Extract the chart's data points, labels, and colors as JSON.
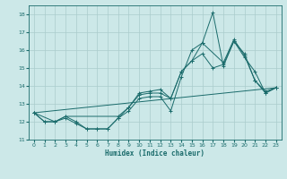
{
  "title": "",
  "xlabel": "Humidex (Indice chaleur)",
  "ylabel": "",
  "xlim": [
    -0.5,
    23.5
  ],
  "ylim": [
    11,
    18.5
  ],
  "yticks": [
    11,
    12,
    13,
    14,
    15,
    16,
    17,
    18
  ],
  "xticks": [
    0,
    1,
    2,
    3,
    4,
    5,
    6,
    7,
    8,
    9,
    10,
    11,
    12,
    13,
    14,
    15,
    16,
    17,
    18,
    19,
    20,
    21,
    22,
    23
  ],
  "bg_color": "#cce8e8",
  "grid_color": "#aacccc",
  "line_color": "#1a6b6b",
  "lines": [
    {
      "x": [
        0,
        1,
        2,
        3,
        4,
        5,
        6,
        7,
        8,
        9,
        10,
        11,
        12,
        13,
        14,
        15,
        16,
        17,
        18,
        19,
        20,
        21,
        22,
        23
      ],
      "y": [
        12.5,
        12.0,
        12.0,
        12.2,
        11.9,
        11.6,
        11.6,
        11.6,
        12.2,
        12.6,
        13.3,
        13.4,
        13.4,
        12.6,
        14.5,
        16.0,
        16.4,
        18.1,
        15.1,
        16.5,
        15.6,
        14.8,
        13.6,
        13.9
      ],
      "marker": "+"
    },
    {
      "x": [
        0,
        1,
        2,
        3,
        4,
        5,
        6,
        7,
        8,
        9,
        10,
        11,
        12,
        13,
        14,
        15,
        16,
        17,
        18,
        19,
        20,
        21,
        22,
        23
      ],
      "y": [
        12.5,
        12.0,
        12.0,
        12.3,
        12.0,
        11.6,
        11.6,
        11.6,
        12.2,
        12.8,
        13.5,
        13.6,
        13.6,
        13.3,
        14.8,
        15.4,
        15.8,
        15.0,
        15.2,
        16.5,
        15.8,
        14.3,
        13.6,
        13.9
      ],
      "marker": "+"
    },
    {
      "x": [
        0,
        2,
        3,
        8,
        9,
        10,
        11,
        12,
        13,
        14,
        15,
        16,
        18,
        19,
        20,
        21,
        22,
        23
      ],
      "y": [
        12.5,
        12.0,
        12.3,
        12.3,
        12.8,
        13.6,
        13.7,
        13.8,
        13.3,
        14.8,
        15.4,
        16.4,
        15.3,
        16.6,
        15.7,
        14.3,
        13.7,
        13.9
      ],
      "marker": "+"
    },
    {
      "x": [
        0,
        23
      ],
      "y": [
        12.5,
        13.9
      ],
      "marker": null
    }
  ],
  "figsize": [
    3.2,
    2.0
  ],
  "dpi": 100
}
